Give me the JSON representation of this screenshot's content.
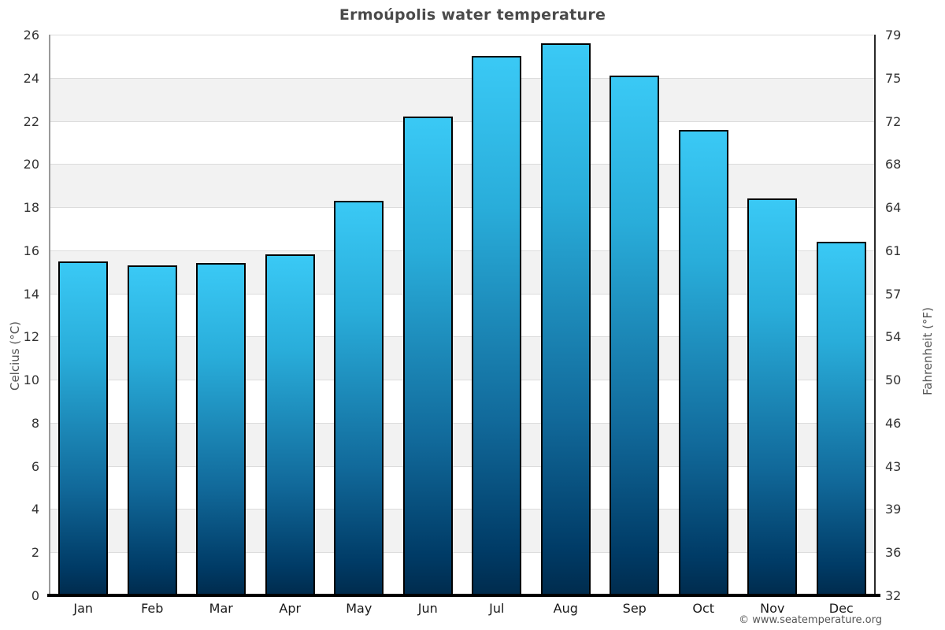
{
  "title": "Ermoúpolis water temperature",
  "footer_credit": "© www.seatemperature.org",
  "chart_data": {
    "type": "bar",
    "title": "Ermoúpolis water temperature",
    "categories": [
      "Jan",
      "Feb",
      "Mar",
      "Apr",
      "May",
      "Jun",
      "Jul",
      "Aug",
      "Sep",
      "Oct",
      "Nov",
      "Dec"
    ],
    "values": [
      15.5,
      15.3,
      15.4,
      15.8,
      18.3,
      22.2,
      25.0,
      25.6,
      24.1,
      21.6,
      18.4,
      16.4
    ],
    "series_name": "Water temperature",
    "xlabel": "",
    "ylabel_left": "Celcius (°C)",
    "ylabel_right": "Fahrenheit (°F)",
    "ylim": [
      0,
      26
    ],
    "y_left_ticks": [
      "26",
      "24",
      "22",
      "20",
      "18",
      "16",
      "14",
      "12",
      "10",
      "8",
      "6",
      "4",
      "2",
      "0"
    ],
    "y_right_ticks": [
      "79",
      "75",
      "72",
      "68",
      "64",
      "61",
      "57",
      "54",
      "50",
      "46",
      "43",
      "39",
      "36",
      "32"
    ],
    "grid": "horizontal-bands-alternating",
    "legend": "none",
    "colors": {
      "bar_gradient_top": "#3ac9f5",
      "bar_gradient_bottom": "#002c4e",
      "bar_border": "#000000",
      "band_gray": "#f2f2f2",
      "gridline": "#dcdcdc",
      "title_text": "#4a4a4a",
      "tick_text": "#333333",
      "axis_title_text": "#555555"
    }
  }
}
